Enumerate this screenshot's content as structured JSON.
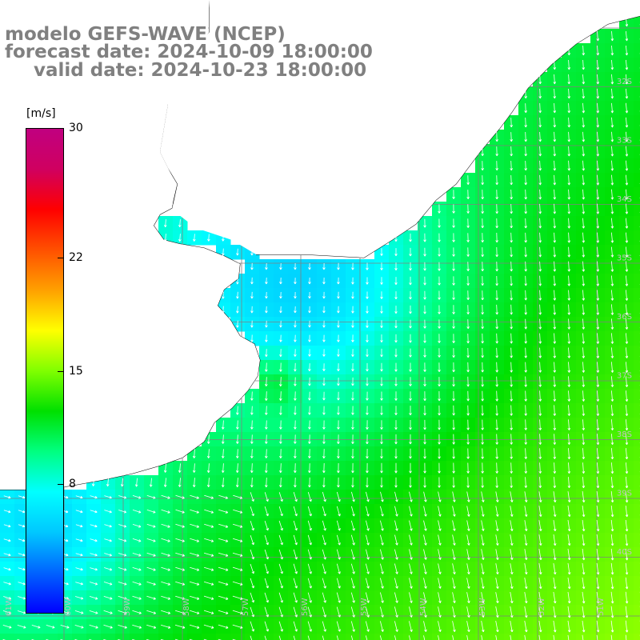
{
  "title": {
    "line1": "modelo GEFS-WAVE (NCEP)",
    "line2": "forecast date: 2024-10-09 18:00:00",
    "line3": "valid date: 2024-10-23 18:00:00"
  },
  "colorbar": {
    "unit": "[m/s]",
    "min": 0,
    "max": 30,
    "ticks": [
      {
        "value": 30,
        "label": "30"
      },
      {
        "value": 22,
        "label": "22"
      },
      {
        "value": 15,
        "label": "15"
      },
      {
        "value": 8,
        "label": "8"
      }
    ],
    "colors": [
      "#0000ff",
      "#0064ff",
      "#00c8ff",
      "#00ffff",
      "#00ff80",
      "#00e000",
      "#80ff00",
      "#ffff00",
      "#ffa000",
      "#ff5000",
      "#ff0000",
      "#d00060",
      "#c00080"
    ]
  },
  "map": {
    "land_color": "#ffffff",
    "coast_color": "#000000",
    "grid_color": "#808080",
    "lat_labels": [
      "32S",
      "33S",
      "34S",
      "35S",
      "36S",
      "37S",
      "38S",
      "39S",
      "40S"
    ],
    "lon_labels": [
      "61W",
      "60W",
      "59W",
      "58W",
      "57W",
      "56W",
      "55W",
      "54W",
      "53W",
      "52W",
      "51W"
    ],
    "field": "wind speed with direction arrows"
  }
}
